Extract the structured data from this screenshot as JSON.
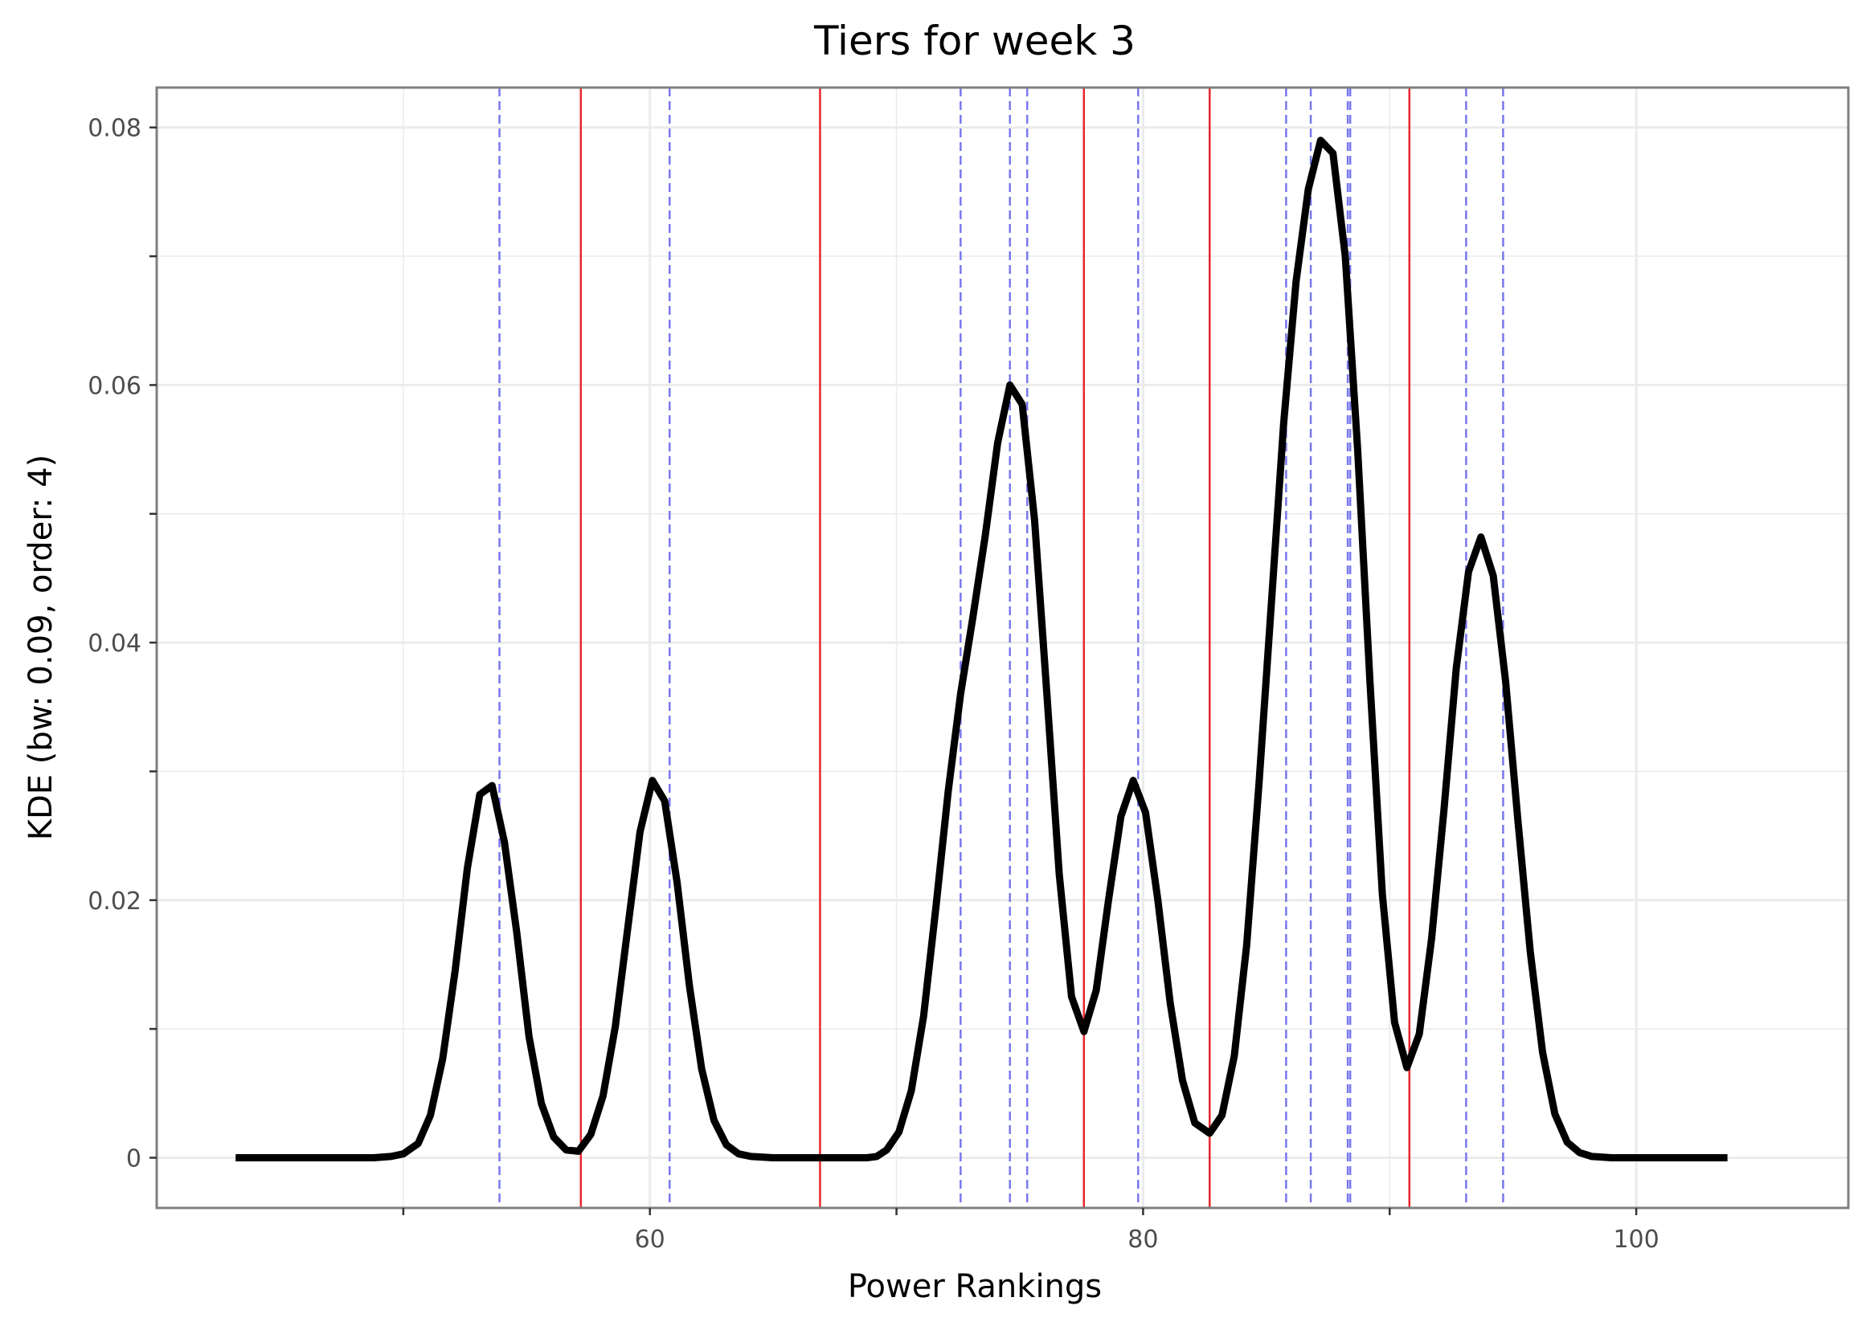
{
  "chart_data": {
    "type": "line",
    "title": "Tiers for week 3",
    "xlabel": "Power Rankings",
    "ylabel": "KDE (bw: 0.09, order: 4)",
    "xlim": [
      40,
      108.6
    ],
    "ylim": [
      -0.0039,
      0.0831
    ],
    "grid": true,
    "x_ticks": [
      60,
      80,
      100
    ],
    "x_tick_labels": [
      "60",
      "80",
      "100"
    ],
    "x_minor_ticks": [
      50,
      70,
      90
    ],
    "y_ticks": [
      0,
      0.02,
      0.04,
      0.06,
      0.08
    ],
    "y_tick_labels": [
      "0",
      "0.02",
      "0.04",
      "0.06",
      "0.08"
    ],
    "y_minor_ticks": [
      0.01,
      0.03,
      0.05,
      0.07
    ],
    "colors": {
      "curve": "#000000",
      "tier_break": "#e8262d",
      "player": "#7878ee",
      "grid": "#ebebeb",
      "panel_border": "#7f7f7f"
    },
    "tier_breaks": [
      57.2,
      66.9,
      77.6,
      82.7,
      90.8
    ],
    "player_lines": [
      53.9,
      60.8,
      72.6,
      74.6,
      75.3,
      79.8,
      85.8,
      86.8,
      88.3,
      88.4,
      93.1,
      94.6
    ],
    "series": [
      {
        "values": [
          [
            43.2,
            0
          ],
          [
            48.8,
            0
          ],
          [
            49.5,
            0.0001
          ],
          [
            50.0,
            0.0003
          ],
          [
            50.6,
            0.0011
          ],
          [
            51.1,
            0.0033
          ],
          [
            51.6,
            0.0077
          ],
          [
            52.1,
            0.0145
          ],
          [
            52.6,
            0.0225
          ],
          [
            53.1,
            0.0282
          ],
          [
            53.6,
            0.0289
          ],
          [
            54.1,
            0.0245
          ],
          [
            54.6,
            0.0175
          ],
          [
            55.1,
            0.0094
          ],
          [
            55.6,
            0.0042
          ],
          [
            56.1,
            0.0016
          ],
          [
            56.6,
            0.0006
          ],
          [
            57.1,
            0.0005
          ],
          [
            57.6,
            0.0018
          ],
          [
            58.1,
            0.0048
          ],
          [
            58.6,
            0.0102
          ],
          [
            59.1,
            0.0178
          ],
          [
            59.6,
            0.0253
          ],
          [
            60.1,
            0.0293
          ],
          [
            60.6,
            0.0277
          ],
          [
            61.1,
            0.0214
          ],
          [
            61.6,
            0.0134
          ],
          [
            62.1,
            0.0069
          ],
          [
            62.6,
            0.0029
          ],
          [
            63.1,
            0.001
          ],
          [
            63.6,
            0.0003
          ],
          [
            64.1,
            0.0001
          ],
          [
            65.0,
            0
          ],
          [
            68.8,
            0
          ],
          [
            69.2,
            0.0001
          ],
          [
            69.6,
            0.0006
          ],
          [
            70.1,
            0.002
          ],
          [
            70.6,
            0.0052
          ],
          [
            71.1,
            0.011
          ],
          [
            71.6,
            0.0195
          ],
          [
            72.1,
            0.0285
          ],
          [
            72.6,
            0.036
          ],
          [
            73.1,
            0.042
          ],
          [
            73.6,
            0.0483
          ],
          [
            74.1,
            0.0555
          ],
          [
            74.6,
            0.06
          ],
          [
            75.1,
            0.0585
          ],
          [
            75.6,
            0.0495
          ],
          [
            76.1,
            0.036
          ],
          [
            76.6,
            0.022
          ],
          [
            77.1,
            0.0125
          ],
          [
            77.6,
            0.0098
          ],
          [
            78.1,
            0.013
          ],
          [
            78.6,
            0.02
          ],
          [
            79.1,
            0.0265
          ],
          [
            79.6,
            0.0293
          ],
          [
            80.1,
            0.0268
          ],
          [
            80.6,
            0.02
          ],
          [
            81.1,
            0.012
          ],
          [
            81.6,
            0.006
          ],
          [
            82.1,
            0.0027
          ],
          [
            82.7,
            0.0019
          ],
          [
            83.2,
            0.0033
          ],
          [
            83.7,
            0.0079
          ],
          [
            84.2,
            0.0165
          ],
          [
            84.7,
            0.029
          ],
          [
            85.2,
            0.043
          ],
          [
            85.7,
            0.057
          ],
          [
            86.2,
            0.068
          ],
          [
            86.7,
            0.0752
          ],
          [
            87.2,
            0.079
          ],
          [
            87.7,
            0.078
          ],
          [
            88.2,
            0.07
          ],
          [
            88.7,
            0.055
          ],
          [
            89.2,
            0.037
          ],
          [
            89.7,
            0.0205
          ],
          [
            90.2,
            0.0105
          ],
          [
            90.7,
            0.007
          ],
          [
            91.2,
            0.0096
          ],
          [
            91.7,
            0.017
          ],
          [
            92.2,
            0.027
          ],
          [
            92.7,
            0.038
          ],
          [
            93.2,
            0.0455
          ],
          [
            93.7,
            0.0482
          ],
          [
            94.2,
            0.0452
          ],
          [
            94.7,
            0.037
          ],
          [
            95.2,
            0.0262
          ],
          [
            95.7,
            0.016
          ],
          [
            96.2,
            0.0082
          ],
          [
            96.7,
            0.0034
          ],
          [
            97.2,
            0.0012
          ],
          [
            97.7,
            0.0004
          ],
          [
            98.2,
            0.0001
          ],
          [
            99.0,
            0
          ],
          [
            103.7,
            0
          ]
        ]
      }
    ]
  }
}
